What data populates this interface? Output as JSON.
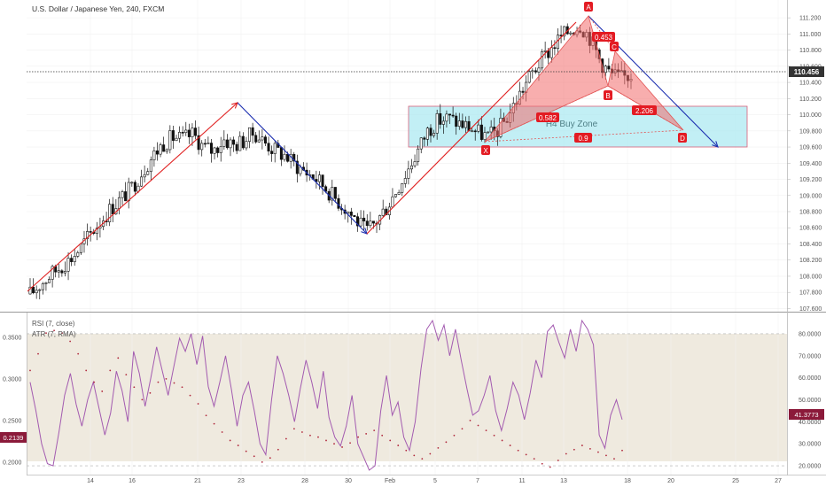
{
  "chart_data": {
    "type": "candlestick",
    "title": "U.S. Dollar / Japanese Yen, 240, FXCM",
    "current_price": "110.456",
    "price_axis": {
      "range": [
        107.55,
        111.3
      ],
      "ticks": [
        "111.200",
        "111.000",
        "110.800",
        "110.600",
        "110.400",
        "110.200",
        "110.000",
        "109.800",
        "109.600",
        "109.400",
        "109.200",
        "109.000",
        "108.800",
        "108.600",
        "108.400",
        "108.200",
        "108.000",
        "107.800",
        "107.600"
      ]
    },
    "x_axis": {
      "ticks": [
        "14",
        "16",
        "21",
        "23",
        "28",
        "30",
        "Feb",
        "5",
        "7",
        "11",
        "13",
        "18",
        "20",
        "25",
        "27"
      ]
    },
    "price_path": [
      107.78,
      107.9,
      108.02,
      108.12,
      108.22,
      108.36,
      108.54,
      108.7,
      108.85,
      108.97,
      109.1,
      109.3,
      109.48,
      109.64,
      109.72,
      109.7,
      109.76,
      109.6,
      109.55,
      109.7,
      109.62,
      109.68,
      109.78,
      109.66,
      109.56,
      109.5,
      109.38,
      109.3,
      109.22,
      109.1,
      108.96,
      108.84,
      108.7,
      108.55,
      108.68,
      108.86,
      109.08,
      109.3,
      109.54,
      109.8,
      109.92,
      109.96,
      109.9,
      109.85,
      109.78,
      109.72,
      109.82,
      110.0,
      110.24,
      110.46,
      110.64,
      110.8,
      110.95,
      111.05,
      111.12,
      110.95,
      110.66,
      110.5,
      110.45,
      110.5
    ],
    "pattern": {
      "labels": [
        "A",
        "C",
        "B",
        "X",
        "D"
      ],
      "ratios": [
        "0.453",
        "0.582",
        "2.206",
        "0.9"
      ],
      "zone_label": "H4 Buy Zone"
    },
    "indicators": {
      "legend": [
        "RSI (7, close)",
        "ATR (7, RMA)"
      ],
      "left_axis_ticks": [
        "0.3500",
        "0.3000",
        "0.2500",
        "0.2000"
      ],
      "left_axis_range": [
        0.185,
        0.37
      ],
      "right_axis_ticks": [
        "80.0000",
        "70.0000",
        "60.0000",
        "50.0000",
        "40.0000",
        "30.0000",
        "20.0000"
      ],
      "right_axis_range": [
        16,
        86
      ],
      "rsi_last": "41.3773",
      "atr_last": "0.2139",
      "rsi": [
        58,
        45,
        30,
        21,
        20,
        35,
        52,
        62,
        48,
        38,
        50,
        58,
        46,
        34,
        44,
        63,
        54,
        40,
        72,
        62,
        47,
        60,
        74,
        63,
        52,
        65,
        78,
        72,
        80,
        66,
        79,
        56,
        47,
        58,
        70,
        55,
        38,
        52,
        58,
        45,
        30,
        25,
        50,
        70,
        62,
        52,
        40,
        55,
        68,
        58,
        46,
        63,
        42,
        33,
        29,
        38,
        52,
        30,
        24,
        18,
        20,
        45,
        61,
        43,
        49,
        33,
        27,
        40,
        64,
        82,
        86,
        77,
        84,
        70,
        82,
        68,
        55,
        43,
        45,
        52,
        61,
        45,
        36,
        46,
        58,
        52,
        41,
        53,
        68,
        60,
        81,
        84,
        76,
        69,
        82,
        72,
        86,
        82,
        75,
        34,
        28,
        43,
        50,
        41
      ],
      "atr": [
        0.31,
        0.33,
        0.355,
        0.358,
        0.355,
        0.345,
        0.33,
        0.31,
        0.296,
        0.285,
        0.31,
        0.325,
        0.305,
        0.29,
        0.275,
        0.283,
        0.296,
        0.3,
        0.295,
        0.29,
        0.28,
        0.27,
        0.256,
        0.246,
        0.236,
        0.226,
        0.22,
        0.213,
        0.207,
        0.2,
        0.205,
        0.215,
        0.228,
        0.24,
        0.236,
        0.232,
        0.23,
        0.226,
        0.222,
        0.218,
        0.223,
        0.23,
        0.234,
        0.238,
        0.232,
        0.226,
        0.22,
        0.214,
        0.208,
        0.204,
        0.21,
        0.217,
        0.224,
        0.232,
        0.24,
        0.25,
        0.244,
        0.238,
        0.232,
        0.226,
        0.22,
        0.214,
        0.209,
        0.204,
        0.198,
        0.194,
        0.202,
        0.21,
        0.215,
        0.22,
        0.216,
        0.212,
        0.208,
        0.204,
        0.214
      ]
    }
  }
}
